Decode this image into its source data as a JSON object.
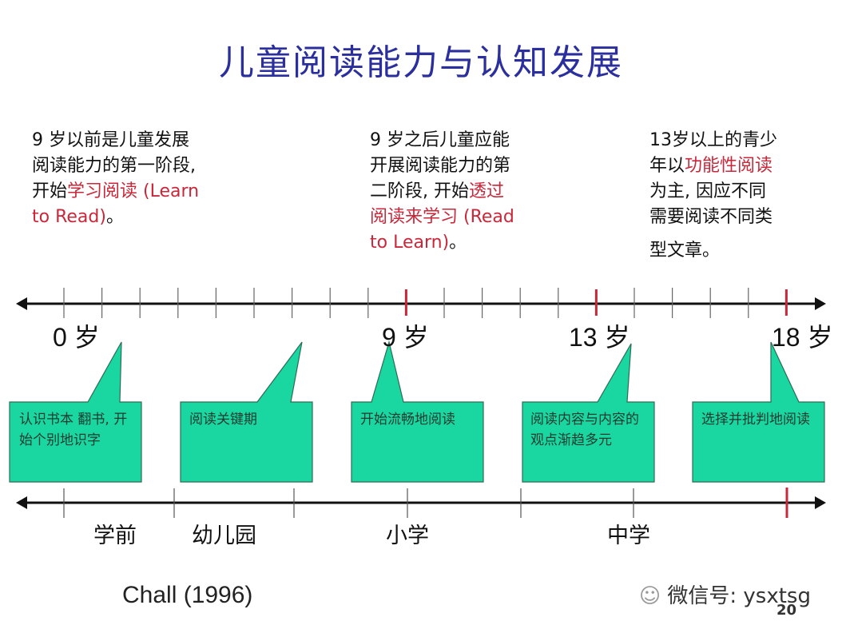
{
  "title": "儿童阅读能力与认知发展",
  "notes": [
    {
      "lines": [
        [
          {
            "t": "9 岁以前是儿童发展",
            "red": false
          }
        ],
        [
          {
            "t": "阅读能力的第一阶段,",
            "red": false
          }
        ],
        [
          {
            "t": "开始",
            "red": false
          },
          {
            "t": "学习阅读 (Learn",
            "red": true
          }
        ],
        [
          {
            "t": "to Read)",
            "red": true
          },
          {
            "t": "。",
            "red": false
          }
        ]
      ]
    },
    {
      "lines": [
        [
          {
            "t": "9 岁之后儿童应能",
            "red": false
          }
        ],
        [
          {
            "t": "开展阅读能力的第",
            "red": false
          }
        ],
        [
          {
            "t": "二阶段,  开始",
            "red": false
          },
          {
            "t": "透过",
            "red": true
          }
        ],
        [
          {
            "t": "阅读来学习 (Read",
            "red": true
          }
        ],
        [
          {
            "t": "to Learn)",
            "red": true
          },
          {
            "t": "。",
            "red": false
          }
        ]
      ]
    },
    {
      "lines": [
        [
          {
            "t": "13岁以上的青少",
            "red": false
          }
        ],
        [
          {
            "t": "年以",
            "red": false
          },
          {
            "t": "功能性阅读",
            "red": true
          }
        ],
        [
          {
            "t": "为主, 因应不同",
            "red": false
          }
        ],
        [
          {
            "t": "需要阅读不同类",
            "red": false
          }
        ],
        [
          {
            "t": "型文章。",
            "red": false
          }
        ]
      ]
    }
  ],
  "ages": [
    "0 岁",
    "9 岁",
    "13 岁",
    "18 岁"
  ],
  "callouts": [
    "认识书本   翻书, 开始个别地识字",
    "阅读关键期",
    "开始流畅地阅读",
    "阅读内容与内容的观点渐趋多元",
    "选择并批判地阅读"
  ],
  "stages": [
    "学前",
    "幼儿园",
    "小学",
    "中学"
  ],
  "citation": "Chall (1996)",
  "watermark": "微信号: ysxtsg",
  "page_number": "20",
  "colors": {
    "title": "#2b2f9e",
    "highlight": "#c8283a",
    "callout": "#1ad6a0",
    "marker": "#c8283a"
  }
}
